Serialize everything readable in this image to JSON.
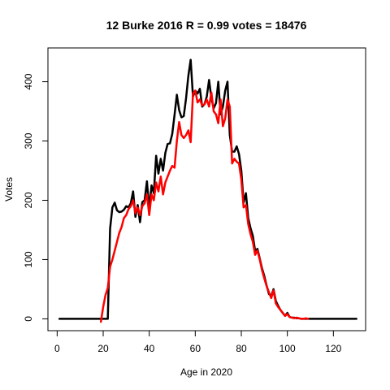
{
  "chart_data": {
    "type": "line",
    "title": "12 Burke 2016 R = 0.99 votes = 18476",
    "xlabel": "Age in 2020",
    "ylabel": "Votes",
    "xlim": [
      -4,
      134
    ],
    "ylim": [
      -20,
      457
    ],
    "xticks": [
      0,
      20,
      40,
      60,
      80,
      100,
      120
    ],
    "yticks": [
      0,
      100,
      200,
      300,
      400
    ],
    "grid": false,
    "legend": "none",
    "series": [
      {
        "color": "#000000",
        "x": [
          1,
          2,
          3,
          4,
          5,
          6,
          7,
          8,
          9,
          10,
          11,
          12,
          13,
          14,
          15,
          16,
          17,
          18,
          19,
          20,
          21,
          22,
          23,
          24,
          25,
          26,
          27,
          28,
          29,
          30,
          31,
          32,
          33,
          34,
          35,
          36,
          37,
          38,
          39,
          40,
          41,
          42,
          43,
          44,
          45,
          46,
          47,
          48,
          49,
          50,
          51,
          52,
          53,
          54,
          55,
          56,
          57,
          58,
          59,
          60,
          61,
          62,
          63,
          64,
          65,
          66,
          67,
          68,
          69,
          70,
          71,
          72,
          73,
          74,
          75,
          76,
          77,
          78,
          79,
          80,
          81,
          82,
          83,
          84,
          85,
          86,
          87,
          88,
          89,
          90,
          91,
          92,
          93,
          94,
          95,
          96,
          97,
          98,
          99,
          100,
          101,
          102,
          103,
          104,
          105,
          106,
          107,
          108,
          109,
          110,
          111,
          112,
          113,
          114,
          115,
          116,
          117,
          118,
          119,
          120,
          121,
          122,
          123,
          124,
          125,
          126,
          127,
          128,
          129,
          130
        ],
        "y": [
          0,
          0,
          0,
          0,
          0,
          0,
          0,
          0,
          0,
          0,
          0,
          0,
          0,
          0,
          0,
          0,
          0,
          0,
          0,
          0,
          0,
          0,
          152,
          188,
          196,
          183,
          180,
          181,
          184,
          190,
          188,
          195,
          215,
          172,
          192,
          163,
          197,
          200,
          232,
          185,
          225,
          212,
          275,
          245,
          270,
          250,
          280,
          295,
          296,
          312,
          344,
          378,
          352,
          340,
          342,
          372,
          410,
          437,
          375,
          385,
          380,
          388,
          358,
          362,
          375,
          403,
          372,
          355,
          364,
          400,
          345,
          358,
          385,
          400,
          310,
          282,
          282,
          291,
          278,
          250,
          196,
          212,
          170,
          153,
          140,
          115,
          118,
          102,
          85,
          72,
          56,
          42,
          38,
          50,
          30,
          22,
          15,
          10,
          5,
          10,
          3,
          2,
          2,
          1,
          1,
          0,
          0,
          0,
          0,
          0,
          0,
          0,
          0,
          0,
          0,
          0,
          0,
          0,
          0,
          0,
          0,
          0,
          0,
          0,
          0,
          0,
          0,
          0,
          0,
          0
        ]
      },
      {
        "color": "#ff0000",
        "x": [
          19,
          20,
          21,
          22,
          23,
          24,
          25,
          26,
          27,
          28,
          29,
          30,
          31,
          32,
          33,
          34,
          35,
          36,
          37,
          38,
          39,
          40,
          41,
          42,
          43,
          44,
          45,
          46,
          47,
          48,
          49,
          50,
          51,
          52,
          53,
          54,
          55,
          56,
          57,
          58,
          59,
          60,
          61,
          62,
          63,
          64,
          65,
          66,
          67,
          68,
          69,
          70,
          71,
          72,
          73,
          74,
          75,
          76,
          77,
          78,
          79,
          80,
          81,
          82,
          83,
          84,
          85,
          86,
          87,
          88,
          89,
          90,
          91,
          92,
          93,
          94,
          95,
          96,
          97,
          98,
          99,
          100,
          101,
          102,
          103,
          104,
          105,
          106,
          107,
          108,
          109
        ],
        "y": [
          -5,
          20,
          40,
          52,
          88,
          100,
          115,
          130,
          145,
          155,
          170,
          175,
          185,
          190,
          200,
          178,
          188,
          175,
          190,
          195,
          210,
          175,
          210,
          200,
          230,
          215,
          240,
          210,
          230,
          240,
          250,
          258,
          255,
          300,
          332,
          310,
          305,
          310,
          318,
          298,
          380,
          385,
          365,
          370,
          360,
          362,
          370,
          358,
          382,
          350,
          345,
          330,
          370,
          325,
          338,
          370,
          358,
          262,
          270,
          265,
          262,
          235,
          188,
          192,
          160,
          143,
          130,
          108,
          115,
          100,
          82,
          68,
          55,
          45,
          35,
          48,
          26,
          20,
          15,
          10,
          5,
          8,
          3,
          2,
          1,
          2,
          1,
          0,
          0,
          1,
          0
        ]
      }
    ]
  }
}
